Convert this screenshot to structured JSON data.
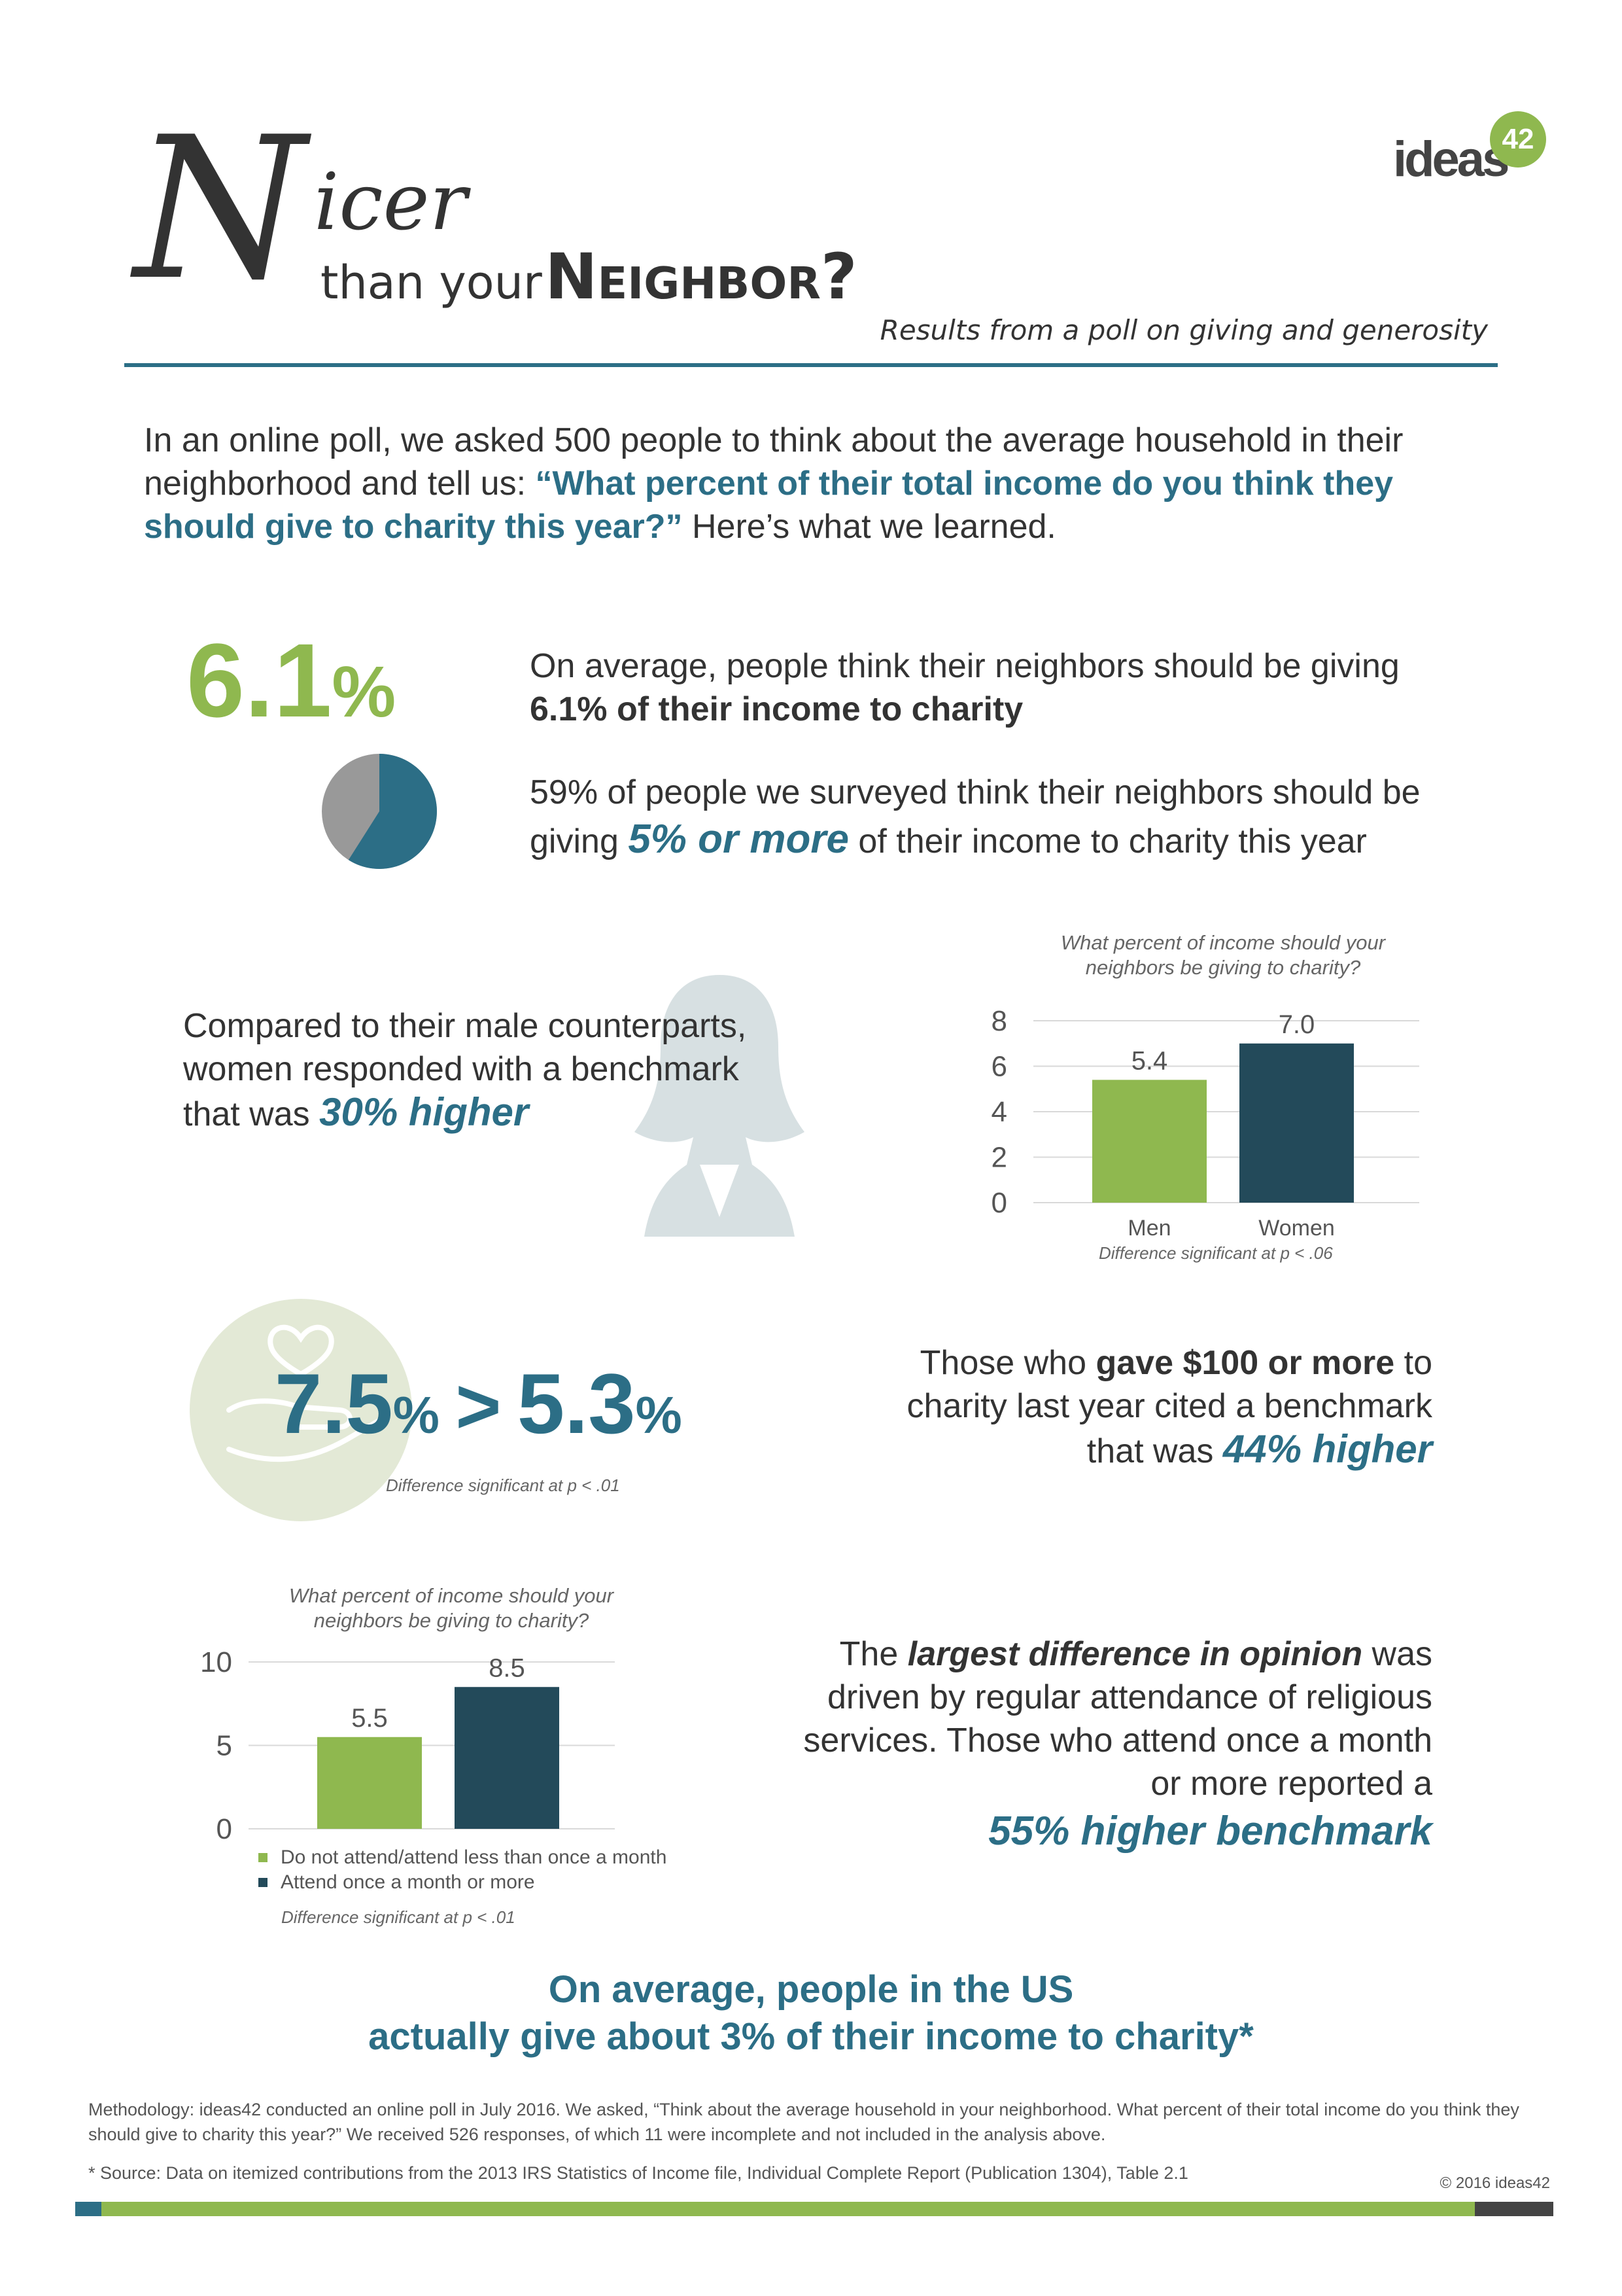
{
  "header": {
    "title_initial": "N",
    "title_rest": "icer",
    "title_line2_prefix": "than your",
    "title_line2_word": "Neighbor?",
    "subtitle": "Results from a poll on giving and generosity",
    "logo_text": "ideas",
    "logo_badge": "42"
  },
  "intro": {
    "part1": "In an online poll, we asked 500 people to think about the average household in their neighborhood and tell us: ",
    "question": "“What percent of their total income do you think they should give to charity this year?”",
    "part2": " Here’s what we learned."
  },
  "stat1": {
    "big_number": "6.1",
    "big_unit": "%",
    "line1": "On average, people think their neighbors should be giving",
    "line1_bold": "6.1% of their income to charity",
    "line2_a": "59% of people we surveyed think their neighbors should be giving ",
    "line2_emph": "5% or more",
    "line2_b": " of their income to charity this year",
    "pie_fraction": 0.59,
    "pie_colors": {
      "main": "#2c6e86",
      "rest": "#999999"
    }
  },
  "gender": {
    "text_a": "Compared to their male counterparts, women responded with a benchmark that was ",
    "text_emph": "30% higher",
    "icon": "woman-silhouette-icon"
  },
  "gift": {
    "value_a": "7.5",
    "unit_a": "%",
    "operator": ">",
    "value_b": "5.3",
    "unit_b": "%",
    "note": "Difference significant at p < .01",
    "text_a": "Those who ",
    "text_bold": "gave $100 or more",
    "text_b": " to charity last year cited a benchmark that was ",
    "text_emph": "44% higher",
    "icon": "heart-in-hand-icon"
  },
  "religion": {
    "text_a": "The ",
    "text_bold": "largest difference in opinion",
    "text_b": " was driven by regular attendance of religious services. Those who attend once a month or more reported a",
    "text_emph": "55% higher benchmark"
  },
  "conclusion": {
    "line1": "On average, people in the US",
    "line2": "actually give about 3% of their income to charity*"
  },
  "footer": {
    "methodology": "Methodology: ideas42 conducted an online poll in July 2016. We asked, “Think about the average household in your neighborhood. What percent of their total income do you think they should give to charity this year?” We received 526 responses, of which 11 were incomplete and not included in the analysis above.",
    "source": "* Source: Data on itemized contributions from the 2013 IRS Statistics of Income file, Individual Complete Report (Publication 1304), Table 2.1",
    "copyright": "© 2016 ideas42"
  },
  "colors": {
    "teal": "#2c6e86",
    "green": "#8fb84f",
    "dark": "#234a5a"
  },
  "chart_data": [
    {
      "type": "bar",
      "title": "What percent of income should your neighbors be giving to charity?",
      "categories": [
        "Men",
        "Women"
      ],
      "values": [
        5.4,
        7.0
      ],
      "value_labels": [
        "5.4",
        "7.0"
      ],
      "ylim": [
        0,
        8
      ],
      "yticks": [
        "0",
        "2",
        "4",
        "6",
        "8"
      ],
      "grid": true,
      "note": "Difference significant at p < .06",
      "colors": [
        "#8fb84f",
        "#234a5a"
      ]
    },
    {
      "type": "bar",
      "title": "What percent of income should your neighbors be giving to charity?",
      "categories": [
        "Do not attend/attend less than once a month",
        "Attend once a month or more"
      ],
      "values": [
        5.5,
        8.5
      ],
      "value_labels": [
        "5.5",
        "8.5"
      ],
      "ylim": [
        0,
        10
      ],
      "yticks": [
        "0",
        "5",
        "10"
      ],
      "grid": true,
      "legend": "bottom",
      "note": "Difference significant at p < .01",
      "colors": [
        "#8fb84f",
        "#234a5a"
      ]
    }
  ]
}
